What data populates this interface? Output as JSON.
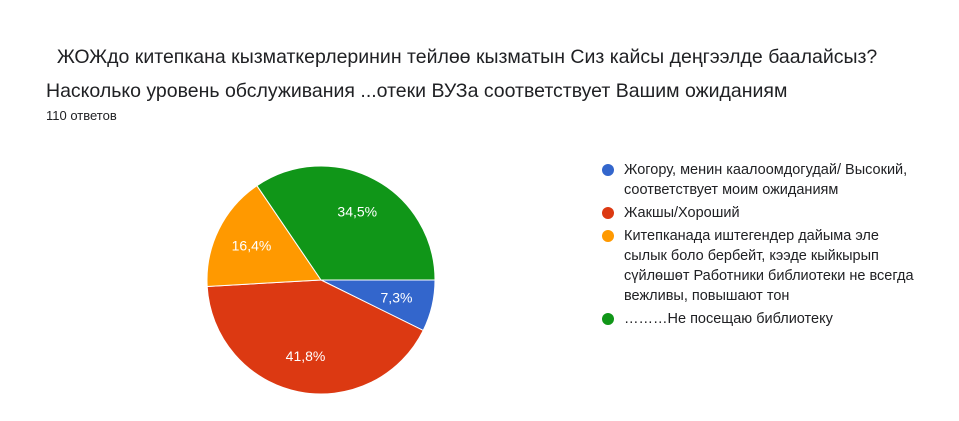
{
  "title": "  ЖОЖдо китепкана кызматкерлеринин тейлөө кызматын Сиз кайсы деңгээлде баалайсыз?  Насколько уровень обслуживания ...отеки ВУЗа соответствует Вашим ожиданиям",
  "response_count": "110 ответов",
  "chart_data": {
    "type": "pie",
    "title": "  ЖОЖдо китепкана кызматкерлеринин тейлөө кызматын Сиз кайсы деңгээлде баалайсыз?  Насколько уровень обслуживания ...отеки ВУЗа соответствует Вашим ожиданиям",
    "legend_position": "right",
    "slices": [
      {
        "label": "Жогору, менин каалоомдогудай/ Высокий, соответствует моим ожиданиям",
        "value": 7.3,
        "value_label": "7,3%",
        "color": "#3366cc"
      },
      {
        "label": "Жакшы/Хороший",
        "value": 41.8,
        "value_label": "41,8%",
        "color": "#dc3912"
      },
      {
        "label": "Китепканада иштегендер дайыма эле сылык боло бербейт, кээде кыйкырып сүйлөшөт Работники библиотеки не всегда вежливы, повышают тон",
        "value": 16.4,
        "value_label": "16,4%",
        "color": "#ff9900"
      },
      {
        "label": "………Не посещаю библиотеку",
        "value": 34.5,
        "value_label": "34,5%",
        "color": "#109618"
      }
    ]
  }
}
